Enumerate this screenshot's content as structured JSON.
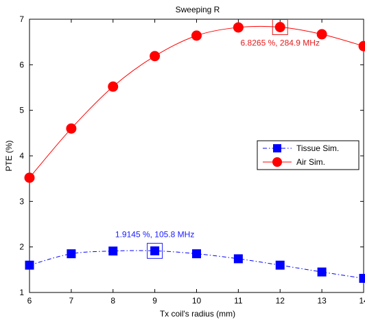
{
  "chart_data": {
    "type": "line",
    "title": "Sweeping R",
    "xlabel": "Tx coil's radius (mm)",
    "ylabel": "PTE (%)",
    "xlim": [
      6,
      14
    ],
    "ylim": [
      1,
      7
    ],
    "x_ticks": [
      "6",
      "7",
      "8",
      "9",
      "10",
      "11",
      "12",
      "13",
      "14"
    ],
    "y_ticks": [
      "1",
      "2",
      "3",
      "4",
      "5",
      "6",
      "7"
    ],
    "grid": false,
    "legend_placement": "right",
    "series": [
      {
        "name": "Tissue Sim.",
        "color": "#0000ff",
        "marker": "square",
        "line_style": "dash-dot",
        "x": [
          6,
          7,
          8,
          9,
          10,
          11,
          12,
          13,
          14
        ],
        "y": [
          1.6,
          1.85,
          1.91,
          1.9145,
          1.85,
          1.74,
          1.6,
          1.45,
          1.31
        ]
      },
      {
        "name": "Air Sim.",
        "color": "#ff0000",
        "marker": "circle",
        "line_style": "solid",
        "x": [
          6,
          7,
          8,
          9,
          10,
          11,
          12,
          13,
          14
        ],
        "y": [
          3.52,
          4.6,
          5.52,
          6.19,
          6.64,
          6.82,
          6.8265,
          6.67,
          6.41
        ]
      }
    ],
    "annotations": [
      {
        "text": "6.8265 %, 284.9 MHz",
        "series": "Air Sim.",
        "x": 12,
        "y": 6.8265,
        "color": "#e41a1c"
      },
      {
        "text": "1.9145 %, 105.8 MHz",
        "series": "Tissue Sim.",
        "x": 9,
        "y": 1.9145,
        "color": "#1a1aff"
      }
    ]
  }
}
